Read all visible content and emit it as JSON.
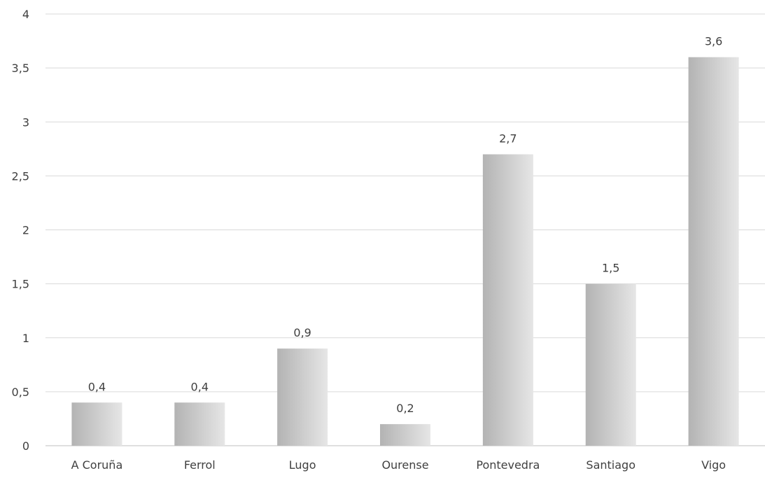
{
  "chart_data": {
    "type": "bar",
    "title": "",
    "xlabel": "",
    "ylabel": "",
    "categories": [
      "A Coruña",
      "Ferrol",
      "Lugo",
      "Ourense",
      "Pontevedra",
      "Santiago",
      "Vigo"
    ],
    "values": [
      0.4,
      0.4,
      0.9,
      0.2,
      2.7,
      1.5,
      3.6
    ],
    "data_labels": [
      "0,4",
      "0,4",
      "0,9",
      "0,2",
      "2,7",
      "1,5",
      "3,6"
    ],
    "ylim": [
      0,
      4
    ],
    "yticks": [
      0,
      0.5,
      1,
      1.5,
      2,
      2.5,
      3,
      3.5,
      4
    ],
    "ytick_labels": [
      "0",
      "0,5",
      "1",
      "1,5",
      "2",
      "2,5",
      "3",
      "3,5",
      "4"
    ],
    "grid": true,
    "legend": "none",
    "colors": {
      "bar_light": "#e6e6e6",
      "bar_dark": "#b3b3b3",
      "grid": "#d9d9d9",
      "text": "#404040"
    }
  }
}
